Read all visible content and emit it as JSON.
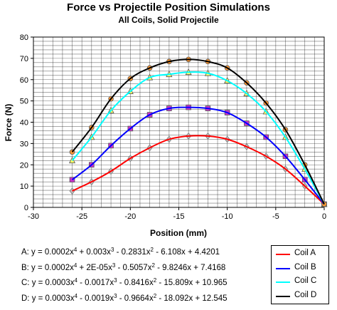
{
  "chart_data": {
    "type": "line",
    "title": "Force vs Projectile Position Simulations",
    "subtitle": "All Coils, Solid Projectile",
    "xlabel": "Position (mm)",
    "ylabel": "Force (N)",
    "xlim": [
      -30,
      0
    ],
    "ylim": [
      0,
      80
    ],
    "x_ticks": [
      -30,
      -25,
      -20,
      -15,
      -10,
      -5,
      0
    ],
    "y_ticks": [
      0,
      10,
      20,
      30,
      40,
      50,
      60,
      70,
      80
    ],
    "grid": true,
    "legend_position": "bottom-right",
    "series": [
      {
        "name": "Coil A",
        "line_color": "#ff0000",
        "marker": "diamond",
        "marker_color": "#c0c0c0",
        "x": [
          -26,
          -24,
          -22,
          -20,
          -18,
          -16,
          -14,
          -12,
          -10,
          -8,
          -6,
          -4,
          -2,
          0
        ],
        "y": [
          7.7,
          12,
          17,
          23,
          28,
          32,
          33.5,
          33.5,
          32,
          28.5,
          24,
          18,
          10,
          1.5
        ],
        "equation": "A: y = 0.0002x⁴ + 0.003x³ - 0.2831x² - 6.108x + 4.4201"
      },
      {
        "name": "Coil B",
        "line_color": "#0000ff",
        "marker": "square",
        "marker_color": "#cc33cc",
        "x": [
          -26,
          -24,
          -22,
          -20,
          -18,
          -16,
          -14,
          -12,
          -10,
          -8,
          -6,
          -4,
          -2,
          0
        ],
        "y": [
          13,
          20,
          29,
          37,
          43.5,
          46.5,
          47,
          46.5,
          44.5,
          39.5,
          33,
          24,
          13,
          1.5
        ],
        "equation": "B: y = 0.0002x⁴ + 2E-05x³ - 0.5057x² - 9.8246x + 7.4168"
      },
      {
        "name": "Coil C",
        "line_color": "#00ffff",
        "marker": "triangle",
        "marker_color": "#ffff66",
        "x": [
          -26,
          -24,
          -22,
          -20,
          -18,
          -16,
          -14,
          -12,
          -10,
          -8,
          -6,
          -4,
          -2,
          0
        ],
        "y": [
          22,
          33,
          45.5,
          54.5,
          61,
          62.5,
          63.5,
          63,
          59.5,
          53.5,
          45,
          33,
          18,
          1.5
        ],
        "equation": "C: y = 0.0003x⁴ - 0.0017x³ - 0.8416x² - 15.809x + 10.965"
      },
      {
        "name": "Coil D",
        "line_color": "#000000",
        "marker": "circle",
        "marker_color": "#ff9933",
        "x": [
          -26,
          -24,
          -22,
          -20,
          -18,
          -16,
          -14,
          -12,
          -10,
          -8,
          -6,
          -4,
          -2,
          0
        ],
        "y": [
          26,
          37.5,
          51,
          60.5,
          65.5,
          68.5,
          69.5,
          68.5,
          65.5,
          58.5,
          49,
          36.5,
          20,
          1.5
        ],
        "equation": "D: y = 0.0003x⁴ - 0.0019x³ - 0.9664x² - 18.092x + 12.545"
      }
    ]
  }
}
